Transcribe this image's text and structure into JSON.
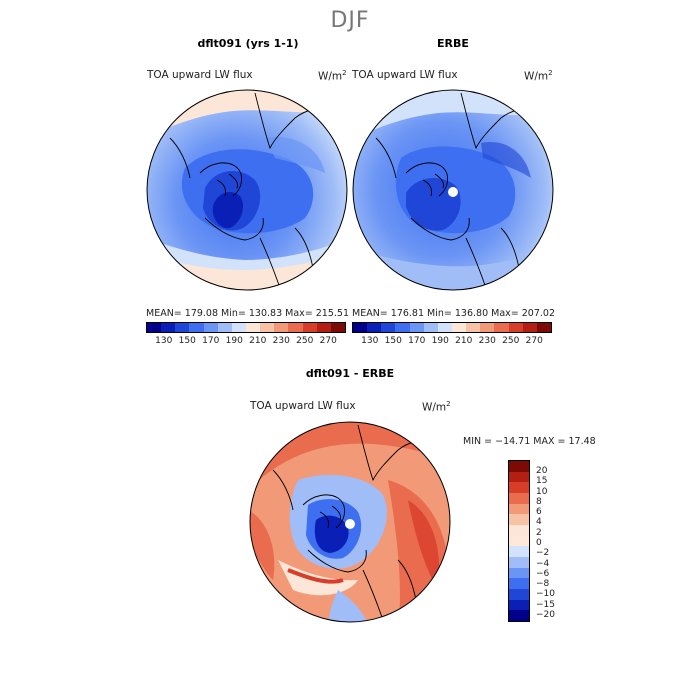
{
  "page": {
    "season_title": "DJF"
  },
  "panel_left": {
    "title": "dflt091 (yrs 1-1)",
    "variable_label": "TOA upward LW flux",
    "units": "W/m",
    "units_exp": "2",
    "stats": "MEAN= 179.08   Min= 130.83   Max= 215.51"
  },
  "panel_right": {
    "title": "ERBE",
    "variable_label": "TOA upward LW flux",
    "units": "W/m",
    "units_exp": "2",
    "stats": "MEAN= 176.81   Min= 136.80   Max= 207.02"
  },
  "panel_diff": {
    "title": "dflt091 - ERBE",
    "variable_label": "TOA upward LW flux",
    "units": "W/m",
    "units_exp": "2",
    "minmax": "MIN = −14.71  MAX =  17.48"
  },
  "colorbar_top": {
    "labels": [
      "130",
      "150",
      "170",
      "190",
      "210",
      "230",
      "250",
      "270"
    ],
    "colors": [
      "#00008b",
      "#0a1fb5",
      "#1f46d6",
      "#3d6ff0",
      "#6b95f5",
      "#a0bdf7",
      "#d2e2fb",
      "#fce6d8",
      "#f7c2a5",
      "#f29a78",
      "#e96c4f",
      "#d83d2a",
      "#b51e12",
      "#7d0a05"
    ]
  },
  "colorbar_diff": {
    "labels": [
      "20",
      "15",
      "10",
      "8",
      "6",
      "4",
      "2",
      "0",
      "−2",
      "−4",
      "−6",
      "−8",
      "−10",
      "−15",
      "−20"
    ],
    "colors": [
      "#7d0a05",
      "#b51e12",
      "#d83d2a",
      "#e96c4f",
      "#f29a78",
      "#f7c2a5",
      "#fce6d8",
      "#fde8da",
      "#d2e2fb",
      "#a0bdf7",
      "#6b95f5",
      "#3d6ff0",
      "#1f46d6",
      "#0a1fb5",
      "#00008b"
    ]
  }
}
